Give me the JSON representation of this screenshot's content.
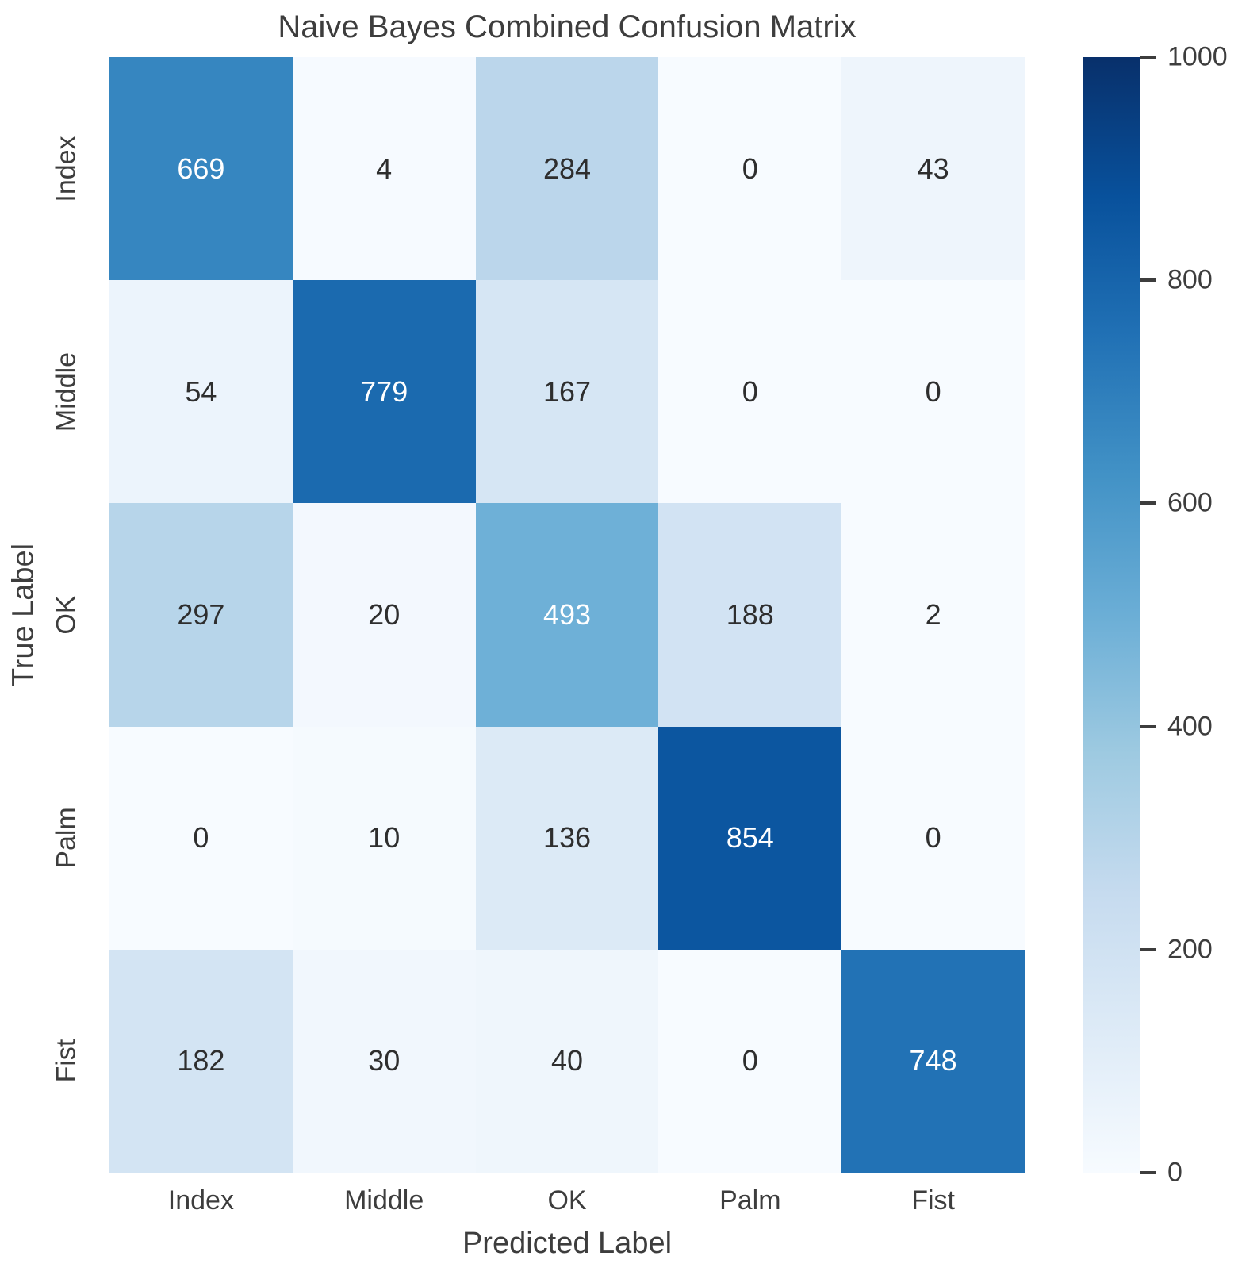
{
  "chart_data": {
    "type": "heatmap",
    "title": "Naive Bayes Combined Confusion Matrix",
    "xlabel": "Predicted Label",
    "ylabel": "True Label",
    "x_categories": [
      "Index",
      "Middle",
      "OK",
      "Palm",
      "Fist"
    ],
    "y_categories": [
      "Index",
      "Middle",
      "OK",
      "Palm",
      "Fist"
    ],
    "values": [
      [
        669,
        4,
        284,
        0,
        43
      ],
      [
        54,
        779,
        167,
        0,
        0
      ],
      [
        297,
        20,
        493,
        188,
        2
      ],
      [
        0,
        10,
        136,
        854,
        0
      ],
      [
        182,
        30,
        40,
        0,
        748
      ]
    ],
    "colormap": "Blues",
    "vmin": 0,
    "vmax": 1000,
    "colorbar_ticks": [
      0,
      200,
      400,
      600,
      800,
      1000
    ],
    "colorbar_position": "right",
    "grid": false
  },
  "colors": {
    "cmap_anchors": [
      "#f7fbff",
      "#deebf7",
      "#c6dbef",
      "#9ecae1",
      "#6baed6",
      "#4292c6",
      "#2171b5",
      "#08519c",
      "#08306b"
    ],
    "label_text": "#3d3d3d",
    "annot_dark": "#2e2e2e",
    "annot_light": "#ffffff",
    "background": "#ffffff"
  }
}
